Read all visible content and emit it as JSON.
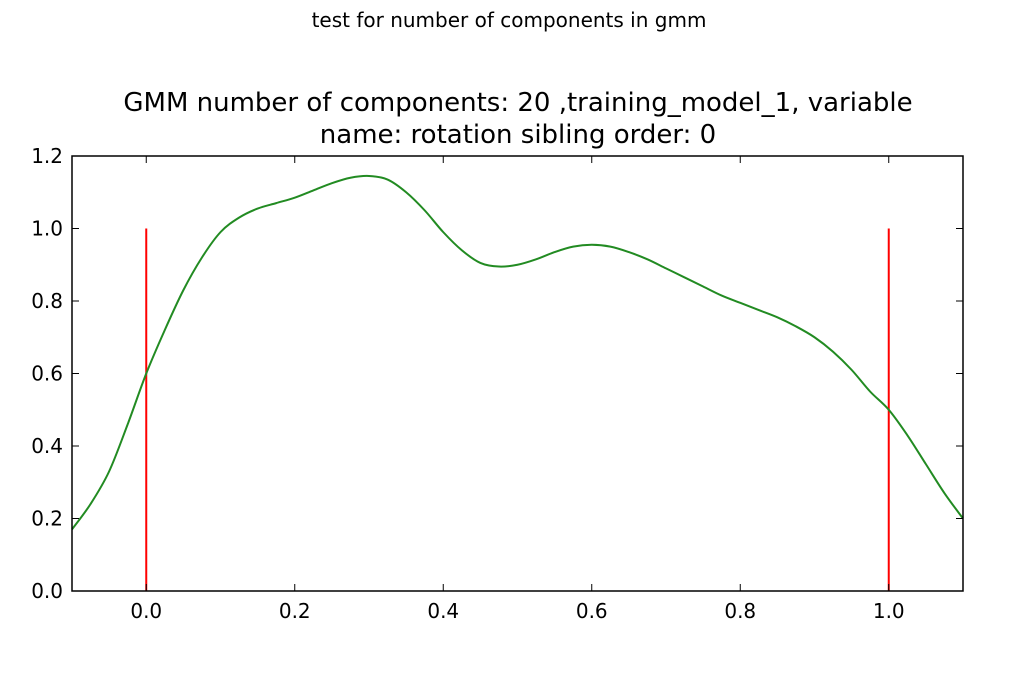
{
  "suptitle": "test for number of components in gmm",
  "chart_data": {
    "type": "line",
    "title_line1": "GMM number of components: 20 ,training_model_1, variable",
    "title_line2": "name: rotation sibling order: 0",
    "xlabel": "",
    "ylabel": "",
    "xlim": [
      -0.1,
      1.1
    ],
    "ylim": [
      0.0,
      1.2
    ],
    "xticks": [
      0.0,
      0.2,
      0.4,
      0.6,
      0.8,
      1.0
    ],
    "xtick_labels": [
      "0.0",
      "0.2",
      "0.4",
      "0.6",
      "0.8",
      "1.0"
    ],
    "yticks": [
      0.0,
      0.2,
      0.4,
      0.6,
      0.8,
      1.0,
      1.2
    ],
    "ytick_labels": [
      "0.0",
      "0.2",
      "0.4",
      "0.6",
      "0.8",
      "1.0",
      "1.2"
    ],
    "grid": false,
    "series": [
      {
        "color": "#228b22",
        "x": [
          -0.1,
          -0.075,
          -0.05,
          -0.025,
          0.0,
          0.025,
          0.05,
          0.075,
          0.1,
          0.125,
          0.15,
          0.175,
          0.2,
          0.225,
          0.25,
          0.275,
          0.3,
          0.325,
          0.35,
          0.375,
          0.4,
          0.425,
          0.45,
          0.475,
          0.5,
          0.525,
          0.55,
          0.575,
          0.6,
          0.625,
          0.65,
          0.675,
          0.7,
          0.725,
          0.75,
          0.775,
          0.8,
          0.825,
          0.85,
          0.875,
          0.9,
          0.925,
          0.95,
          0.975,
          1.0,
          1.025,
          1.05,
          1.075,
          1.1
        ],
        "y": [
          0.17,
          0.24,
          0.33,
          0.46,
          0.6,
          0.72,
          0.83,
          0.92,
          0.99,
          1.03,
          1.055,
          1.07,
          1.085,
          1.105,
          1.125,
          1.14,
          1.145,
          1.135,
          1.1,
          1.05,
          0.99,
          0.94,
          0.905,
          0.895,
          0.9,
          0.915,
          0.935,
          0.95,
          0.955,
          0.95,
          0.935,
          0.915,
          0.89,
          0.865,
          0.84,
          0.815,
          0.795,
          0.775,
          0.755,
          0.73,
          0.7,
          0.66,
          0.61,
          0.55,
          0.5,
          0.43,
          0.35,
          0.27,
          0.2
        ]
      }
    ],
    "vlines": [
      {
        "x": 0.0,
        "ymin": 0.0,
        "ymax": 1.0,
        "color": "#ff0000"
      },
      {
        "x": 1.0,
        "ymin": 0.0,
        "ymax": 1.0,
        "color": "#ff0000"
      }
    ]
  }
}
